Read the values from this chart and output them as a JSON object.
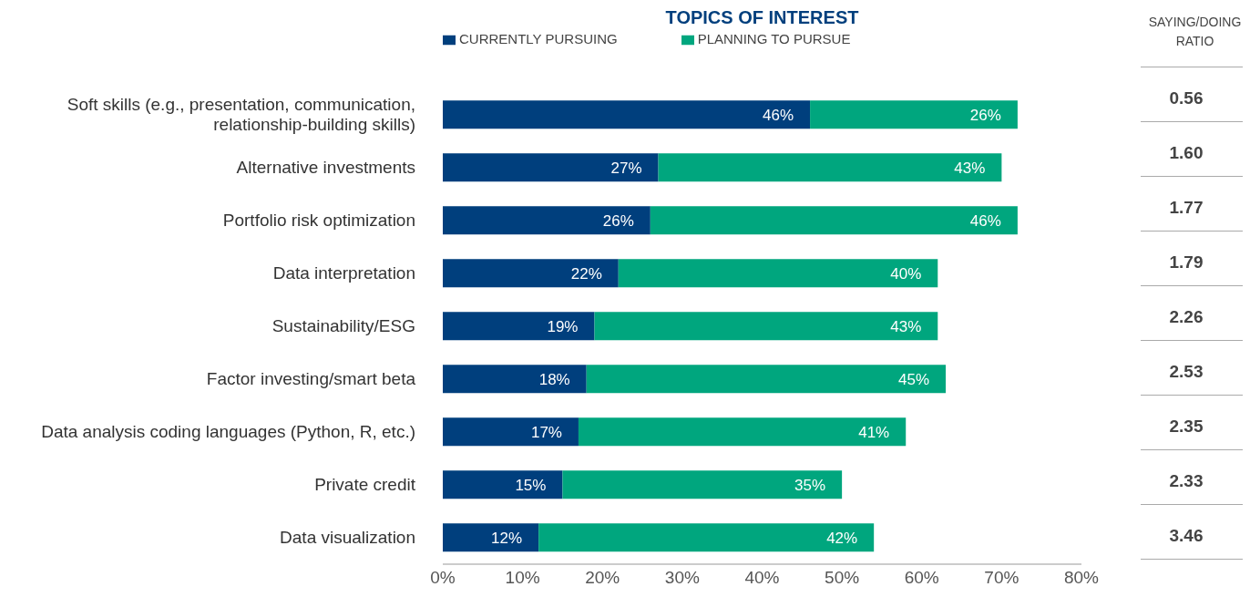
{
  "chart_data": {
    "type": "bar",
    "orientation": "horizontal",
    "stacked": true,
    "title": "TOPICS OF INTEREST",
    "legend": "top",
    "categories": [
      "Soft skills (e.g., presentation, communication, relationship-building skills)",
      "Alternative investments",
      "Portfolio risk optimization",
      "Data interpretation",
      "Sustainability/ESG",
      "Factor investing/smart beta",
      "Data analysis coding languages (Python, R, etc.)",
      "Private credit",
      "Data visualization"
    ],
    "series": [
      {
        "name": "CURRENTLY PURSUING",
        "color": "#003f7d",
        "values": [
          46,
          27,
          26,
          22,
          19,
          18,
          17,
          15,
          12
        ],
        "value_labels": [
          "46%",
          "27%",
          "26%",
          "22%",
          "19%",
          "18%",
          "17%",
          "15%",
          "12%"
        ]
      },
      {
        "name": "PLANNING TO PURSUE",
        "color": "#00a67e",
        "values": [
          26,
          43,
          46,
          40,
          43,
          45,
          41,
          35,
          42
        ],
        "value_labels": [
          "26%",
          "43%",
          "46%",
          "40%",
          "43%",
          "45%",
          "41%",
          "35%",
          "42%"
        ]
      }
    ],
    "xlim": [
      0,
      80
    ],
    "xticks": [
      {
        "value": 0,
        "label": "0%"
      },
      {
        "value": 10,
        "label": "10%"
      },
      {
        "value": 20,
        "label": "20%"
      },
      {
        "value": 30,
        "label": "30%"
      },
      {
        "value": 40,
        "label": "40%"
      },
      {
        "value": 50,
        "label": "50%"
      },
      {
        "value": 60,
        "label": "60%"
      },
      {
        "value": 70,
        "label": "70%"
      },
      {
        "value": 80,
        "label": "80%"
      }
    ],
    "annotations": [
      "SAYING/DOING RATIO",
      "0.56",
      "1.60",
      "1.77",
      "1.79",
      "2.26",
      "2.53",
      "2.35",
      "2.33",
      "3.46"
    ]
  }
}
